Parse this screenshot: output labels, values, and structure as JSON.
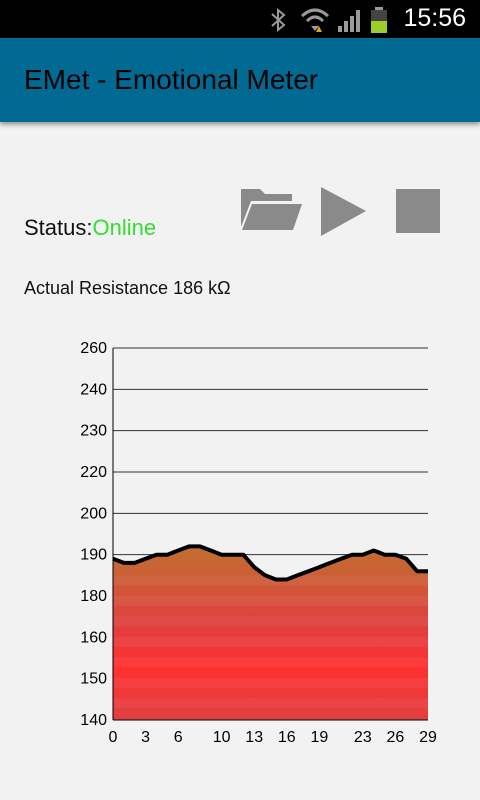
{
  "status_bar": {
    "time": "15:56",
    "icons": [
      "bluetooth-icon",
      "wifi-icon",
      "signal-icon",
      "battery-icon"
    ]
  },
  "app_bar": {
    "title": "EMet - Emotional Meter"
  },
  "controls": {
    "icons": [
      "folder-open-icon",
      "play-icon",
      "stop-icon"
    ],
    "icon_color": "#8a8a8a"
  },
  "status": {
    "label": "Status:",
    "value": "Online",
    "value_color": "#33dd33"
  },
  "resistance": {
    "text": "Actual Resistance 186 kΩ"
  },
  "chart_data": {
    "type": "area",
    "title": "",
    "xlabel": "",
    "ylabel": "",
    "x_ticks": [
      "0",
      "3",
      "6",
      "10",
      "13",
      "16",
      "19",
      "23",
      "26",
      "29"
    ],
    "y_ticks": [
      "140",
      "150",
      "160",
      "180",
      "190",
      "200",
      "220",
      "230",
      "240",
      "260"
    ],
    "series": [
      {
        "x": [
          0,
          1,
          2,
          3,
          4,
          5,
          6,
          7,
          8,
          9,
          10,
          11,
          12,
          13,
          14,
          15,
          16,
          17,
          18,
          19,
          20,
          21,
          22,
          23,
          24,
          25,
          26,
          27,
          28,
          29
        ],
        "values": [
          189,
          188,
          188,
          189,
          190,
          190,
          191,
          192,
          192,
          191,
          190,
          190,
          190,
          187,
          185,
          184,
          184,
          185,
          186,
          187,
          188,
          189,
          190,
          190,
          191,
          190,
          190,
          189,
          186,
          186
        ]
      }
    ],
    "fill_gradient": [
      "#c07030",
      "#e04040",
      "#ff3030",
      "#e04040"
    ],
    "line_color": "#000000",
    "grid": true
  }
}
